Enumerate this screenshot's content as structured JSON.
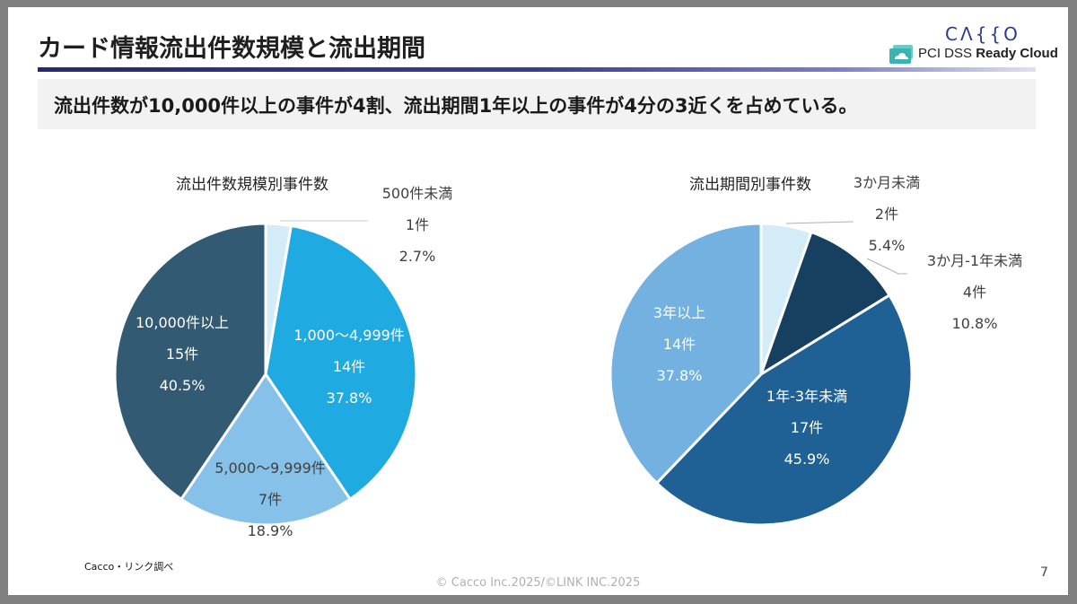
{
  "slide": {
    "title": "カード情報流出件数規模と流出期間",
    "headline": "流出件数が10,000件以上の事件が4割、流出期間1年以上の事件が4分の3近くを占めている。",
    "logo": {
      "brand": "CAKKO",
      "product_regular": "PCI DSS ",
      "product_bold": "Ready Cloud",
      "brand_color": "#2b3a8a",
      "icon_color": "#3bb3b0"
    },
    "source": "Cacco・リンク調べ",
    "copyright": "© Cacco Inc.2025/©LINK INC.2025",
    "page_number": "7"
  },
  "chart_data": [
    {
      "type": "pie",
      "title": "流出件数規模別事件数",
      "start_angle_deg": 0,
      "direction": "clockwise",
      "slices": [
        {
          "label": "500件未満",
          "count_label": "1件",
          "value": 1,
          "percent": 2.7,
          "percent_label": "2.7%",
          "color": "#d4ecf7",
          "label_position": "outside",
          "label_color": "dark"
        },
        {
          "label": "1,000〜4,999件",
          "count_label": "14件",
          "value": 14,
          "percent": 37.8,
          "percent_label": "37.8%",
          "color": "#20aae2",
          "label_position": "inside",
          "label_color": "light"
        },
        {
          "label": "5,000〜9,999件",
          "count_label": "7件",
          "value": 7,
          "percent": 18.9,
          "percent_label": "18.9%",
          "color": "#85c1e9",
          "label_position": "inside",
          "label_color": "dark"
        },
        {
          "label": "10,000件以上",
          "count_label": "15件",
          "value": 15,
          "percent": 40.5,
          "percent_label": "40.5%",
          "color": "#325a73",
          "label_position": "inside",
          "label_color": "light"
        }
      ]
    },
    {
      "type": "pie",
      "title": "流出期間別事件数",
      "start_angle_deg": 0,
      "direction": "clockwise",
      "slices": [
        {
          "label": "3か月未満",
          "count_label": "2件",
          "value": 2,
          "percent": 5.4,
          "percent_label": "5.4%",
          "color": "#d4ecf7",
          "label_position": "outside",
          "label_color": "dark"
        },
        {
          "label": "3か月‐1年未満",
          "count_label": "4件",
          "value": 4,
          "percent": 10.8,
          "percent_label": "10.8%",
          "color": "#173f60",
          "label_position": "outside",
          "label_color": "dark"
        },
        {
          "label": "1年‐3年未満",
          "count_label": "17件",
          "value": 17,
          "percent": 45.9,
          "percent_label": "45.9%",
          "color": "#1f6195",
          "label_position": "inside",
          "label_color": "light"
        },
        {
          "label": "3年以上",
          "count_label": "14件",
          "value": 14,
          "percent": 37.8,
          "percent_label": "37.8%",
          "color": "#72b1e0",
          "label_position": "inside",
          "label_color": "light"
        }
      ]
    }
  ]
}
